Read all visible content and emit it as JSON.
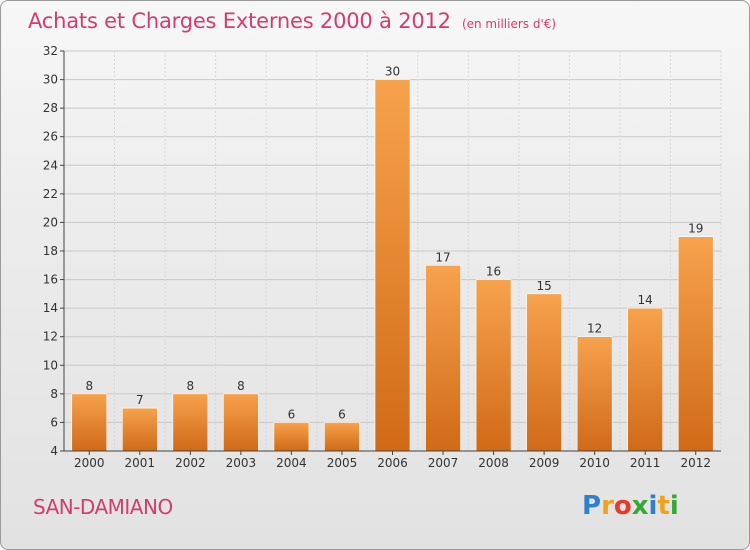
{
  "chart_data": {
    "type": "bar",
    "title": "Achats et Charges Externes 2000 à 2012",
    "subtitle": "(en milliers d'€)",
    "categories": [
      "2000",
      "2001",
      "2002",
      "2003",
      "2004",
      "2005",
      "2006",
      "2007",
      "2008",
      "2009",
      "2010",
      "2011",
      "2012"
    ],
    "values": [
      8,
      7,
      8,
      8,
      6,
      6,
      30,
      17,
      16,
      15,
      12,
      14,
      19
    ],
    "ylim": [
      4,
      32
    ],
    "yticks": [
      4,
      6,
      8,
      10,
      12,
      14,
      16,
      18,
      20,
      22,
      24,
      26,
      28,
      30,
      32
    ],
    "xlabel": "",
    "ylabel": "",
    "grid": true,
    "bar_color": "#f39c44",
    "bar_color_dark": "#d8731f"
  },
  "footer": {
    "place": "SAN-DAMIANO",
    "logo_letters": [
      "P",
      "r",
      "o",
      "x",
      "i",
      "t",
      "i"
    ],
    "logo_colors": [
      "#2f7fd0",
      "#f0a11e",
      "#e63a2b",
      "#36a835",
      "#2f7fd0",
      "#f0a11e",
      "#36a835"
    ]
  },
  "colors": {
    "accent": "#d23c70",
    "axis": "#444444",
    "grid": "#c8c8c8"
  }
}
